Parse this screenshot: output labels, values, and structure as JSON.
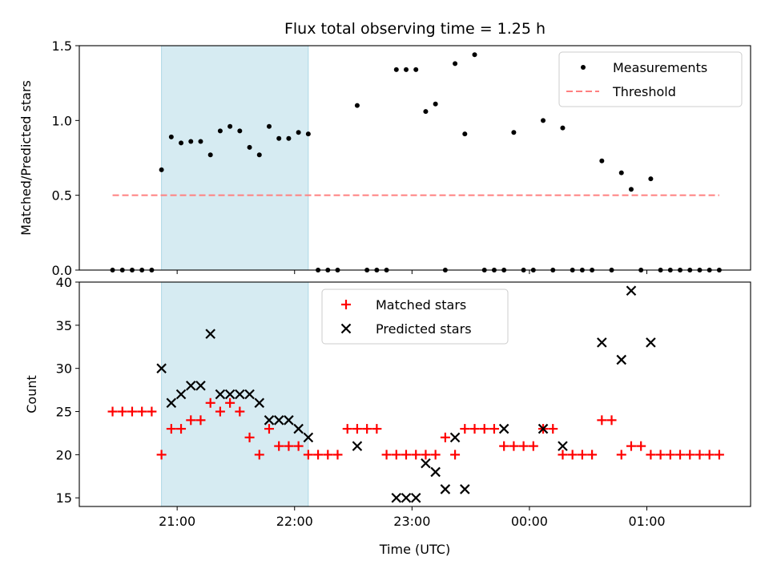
{
  "chart_data": [
    {
      "type": "scatter",
      "title": "Flux total observing time = 1.25 h",
      "xlabel": "",
      "ylabel": "Matched/Predicted stars",
      "xlim": [
        "20:10",
        "01:53"
      ],
      "ylim": [
        0,
        1.5
      ],
      "yticks": [
        "0.0",
        "0.5",
        "1.0",
        "1.5"
      ],
      "xticks": [
        "21:00",
        "22:00",
        "23:00",
        "00:00",
        "01:00"
      ],
      "shaded_span": [
        "20:52",
        "22:07"
      ],
      "shade_color": "#add8e6",
      "legend": {
        "position": "top-right",
        "entries": [
          "Measurements",
          "Threshold"
        ]
      },
      "series": [
        {
          "name": "Measurements",
          "color": "#000000",
          "marker": "dot",
          "x": [
            "20:27",
            "20:32",
            "20:37",
            "20:42",
            "20:47",
            "20:52",
            "20:57",
            "21:02",
            "21:07",
            "21:12",
            "21:17",
            "21:22",
            "21:27",
            "21:32",
            "21:37",
            "21:42",
            "21:47",
            "21:52",
            "21:57",
            "22:02",
            "22:07",
            "22:12",
            "22:17",
            "22:22",
            "22:32",
            "22:37",
            "22:42",
            "22:47",
            "22:52",
            "22:57",
            "23:02",
            "23:07",
            "23:12",
            "23:17",
            "23:22",
            "23:27",
            "23:32",
            "23:37",
            "23:42",
            "23:47",
            "23:52",
            "23:57",
            "24:02",
            "24:07",
            "24:12",
            "24:17",
            "24:22",
            "24:27",
            "24:32",
            "24:37",
            "24:42",
            "24:47",
            "24:52",
            "24:57",
            "25:02",
            "25:07",
            "25:12",
            "25:17",
            "25:22",
            "25:27",
            "25:32",
            "25:37"
          ],
          "y": [
            0,
            0,
            0,
            0,
            0,
            0.67,
            0.89,
            0.85,
            0.86,
            0.86,
            0.77,
            0.93,
            0.96,
            0.93,
            0.82,
            0.77,
            0.96,
            0.88,
            0.88,
            0.92,
            0.91,
            0,
            0,
            0,
            1.1,
            0,
            0,
            0,
            1.34,
            1.34,
            1.34,
            1.06,
            1.11,
            0,
            1.38,
            0.91,
            1.44,
            0,
            0,
            0,
            0.92,
            0,
            0,
            1.0,
            0,
            0.95,
            0,
            0,
            0,
            0.73,
            0,
            0.65,
            0.54,
            0,
            0.61,
            0,
            0,
            0,
            0,
            0,
            0,
            0
          ]
        },
        {
          "name": "Threshold",
          "color": "#ff8080",
          "style": "dashed",
          "x": [
            "20:27",
            "25:37"
          ],
          "y": [
            0.5,
            0.5
          ]
        }
      ]
    },
    {
      "type": "scatter",
      "title": "",
      "xlabel": "Time (UTC)",
      "ylabel": "Count",
      "xlim": [
        "20:10",
        "01:53"
      ],
      "ylim": [
        14,
        40
      ],
      "yticks": [
        "15",
        "20",
        "25",
        "30",
        "35",
        "40"
      ],
      "xticks": [
        "21:00",
        "22:00",
        "23:00",
        "00:00",
        "01:00"
      ],
      "shaded_span": [
        "20:52",
        "22:07"
      ],
      "shade_color": "#add8e6",
      "legend": {
        "position": "top-center",
        "entries": [
          "Matched stars",
          "Predicted stars"
        ]
      },
      "series": [
        {
          "name": "Matched stars",
          "color": "#ff0000",
          "marker": "plus",
          "x": [
            "20:27",
            "20:32",
            "20:37",
            "20:42",
            "20:47",
            "20:52",
            "20:57",
            "21:02",
            "21:07",
            "21:12",
            "21:17",
            "21:22",
            "21:27",
            "21:32",
            "21:37",
            "21:42",
            "21:47",
            "21:52",
            "21:57",
            "22:02",
            "22:07",
            "22:12",
            "22:17",
            "22:22",
            "22:27",
            "22:32",
            "22:37",
            "22:42",
            "22:47",
            "22:52",
            "22:57",
            "23:02",
            "23:07",
            "23:12",
            "23:17",
            "23:22",
            "23:27",
            "23:32",
            "23:37",
            "23:42",
            "23:47",
            "23:52",
            "23:57",
            "24:02",
            "24:07",
            "24:12",
            "24:17",
            "24:22",
            "24:27",
            "24:32",
            "24:37",
            "24:42",
            "24:47",
            "24:52",
            "24:57",
            "25:02",
            "25:07",
            "25:12",
            "25:17",
            "25:22",
            "25:27",
            "25:32",
            "25:37"
          ],
          "y": [
            25,
            25,
            25,
            25,
            25,
            20,
            23,
            23,
            24,
            24,
            26,
            25,
            26,
            25,
            22,
            20,
            23,
            21,
            21,
            21,
            20,
            20,
            20,
            20,
            23,
            23,
            23,
            23,
            20,
            20,
            20,
            20,
            20,
            20,
            22,
            20,
            23,
            23,
            23,
            23,
            21,
            21,
            21,
            21,
            23,
            23,
            20,
            20,
            20,
            20,
            24,
            24,
            20,
            21,
            21,
            20,
            20,
            20,
            20,
            20,
            20,
            20,
            20
          ]
        },
        {
          "name": "Predicted stars",
          "color": "#000000",
          "marker": "x",
          "x": [
            "20:52",
            "20:57",
            "21:02",
            "21:07",
            "21:12",
            "21:17",
            "21:22",
            "21:27",
            "21:32",
            "21:37",
            "21:42",
            "21:47",
            "21:52",
            "21:57",
            "22:02",
            "22:07",
            "22:32",
            "22:52",
            "22:57",
            "23:02",
            "23:07",
            "23:12",
            "23:17",
            "23:22",
            "23:27",
            "23:47",
            "24:07",
            "24:17",
            "24:37",
            "24:47",
            "24:52",
            "25:02"
          ],
          "y": [
            30,
            26,
            27,
            28,
            28,
            34,
            27,
            27,
            27,
            27,
            26,
            24,
            24,
            24,
            23,
            22,
            21,
            15,
            15,
            15,
            19,
            18,
            16,
            22,
            16,
            23,
            23,
            21,
            33,
            31,
            39,
            33
          ]
        }
      ]
    }
  ]
}
